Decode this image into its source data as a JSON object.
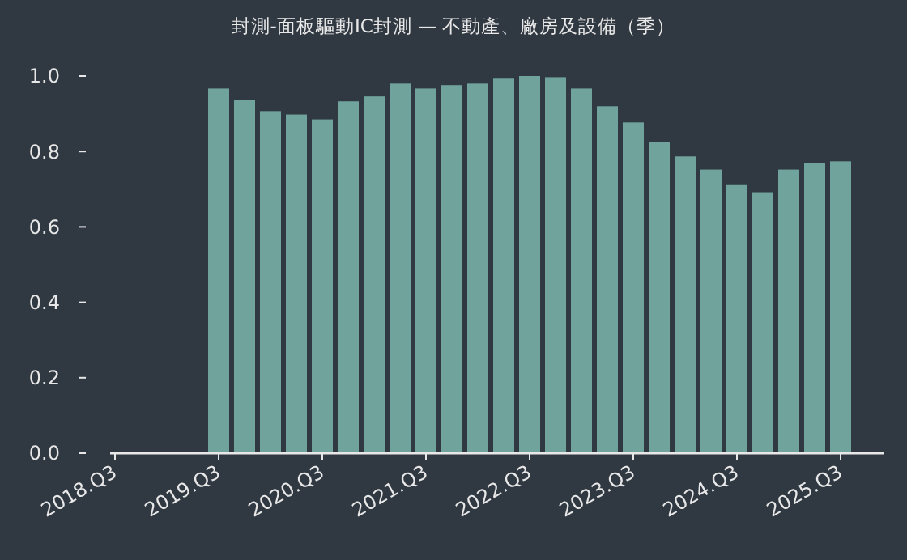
{
  "chart_data": {
    "type": "bar",
    "title": "封測-面板驅動IC封測 — 不動產、廠房及設備（季）",
    "categories": [
      "2018.Q3",
      null,
      null,
      null,
      "2019.Q3",
      null,
      null,
      null,
      "2020.Q3",
      null,
      null,
      null,
      "2021.Q3",
      null,
      null,
      null,
      "2022.Q3",
      null,
      null,
      null,
      "2023.Q3",
      null,
      null,
      null,
      "2024.Q3",
      null,
      null,
      null,
      "2025.Q3"
    ],
    "values": [
      null,
      null,
      null,
      null,
      0.967,
      0.937,
      0.907,
      0.898,
      0.885,
      0.933,
      0.946,
      0.98,
      0.967,
      0.976,
      0.98,
      0.993,
      1.0,
      0.997,
      0.967,
      0.92,
      0.877,
      0.825,
      0.787,
      0.752,
      0.713,
      0.692,
      0.752,
      0.769,
      0.774
    ],
    "color": "#6fa39c",
    "ylim": [
      0,
      1
    ],
    "yticks": [
      {
        "value": 0,
        "label": "0.0"
      },
      {
        "value": 0.2,
        "label": "0.2"
      },
      {
        "value": 0.4,
        "label": "0.4"
      },
      {
        "value": 0.6,
        "label": "0.6"
      },
      {
        "value": 0.8,
        "label": "0.8"
      },
      {
        "value": 1,
        "label": "1.0"
      }
    ],
    "grid": false
  }
}
